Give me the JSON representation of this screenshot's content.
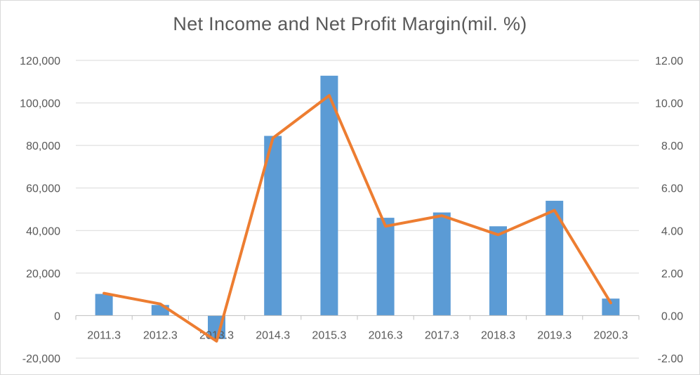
{
  "chart_data": {
    "type": "bar",
    "title": "Net Income and Net Profit Margin(mil.  %)",
    "categories": [
      "2011.3",
      "2012.3",
      "2013.3",
      "2014.3",
      "2015.3",
      "2016.3",
      "2017.3",
      "2018.3",
      "2019.3",
      "2020.3"
    ],
    "series": [
      {
        "type": "bar",
        "axis": "left",
        "color": "#5b9bd5",
        "values": [
          10200,
          5000,
          -11000,
          84500,
          112800,
          46000,
          48500,
          42000,
          54000,
          8000
        ]
      },
      {
        "type": "line",
        "axis": "right",
        "color": "#ed7d31",
        "values": [
          1.05,
          0.55,
          -1.2,
          8.35,
          10.35,
          4.2,
          4.7,
          3.8,
          4.95,
          0.6
        ]
      }
    ],
    "y_left": {
      "min": -20000,
      "max": 120000,
      "step": 20000,
      "tick_labels": [
        "-20,000",
        "0",
        "20,000",
        "40,000",
        "60,000",
        "80,000",
        "100,000",
        "120,000"
      ]
    },
    "y_right": {
      "min": -2,
      "max": 12,
      "step": 2,
      "tick_labels": [
        "-2.00",
        "0.00",
        "2.00",
        "4.00",
        "6.00",
        "8.00",
        "10.00",
        "12.00"
      ]
    },
    "grid": true,
    "legend": "none"
  }
}
